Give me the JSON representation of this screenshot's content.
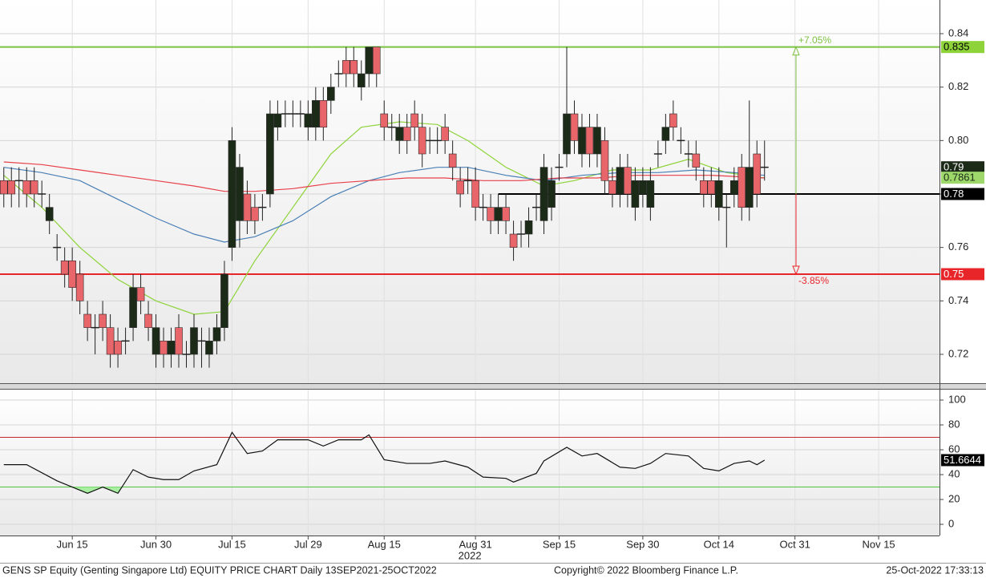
{
  "chart_data": [
    {
      "type": "candlestick",
      "x": [
        0,
        1,
        2,
        3,
        4,
        5,
        6,
        7,
        8,
        9,
        10,
        11,
        12,
        13,
        14,
        15,
        16,
        17,
        18,
        19,
        20,
        21,
        22,
        23,
        24,
        25,
        26,
        27,
        28,
        29,
        30,
        31,
        32,
        33,
        34,
        35,
        36,
        37,
        38,
        39,
        40,
        41,
        42,
        43,
        44,
        45,
        46,
        47,
        48,
        49,
        50,
        51,
        52,
        53,
        54,
        55,
        56,
        57,
        58,
        59,
        60,
        61,
        62,
        63,
        64,
        65,
        66,
        67,
        68,
        69,
        70,
        71,
        72,
        73,
        74,
        75,
        76,
        77,
        78,
        79,
        80,
        81,
        82,
        83,
        84,
        85,
        86,
        87,
        88,
        89,
        90,
        91,
        92,
        93,
        94,
        95,
        96,
        97,
        98,
        99,
        100
      ],
      "open": [
        0.785,
        0.785,
        0.785,
        0.785,
        0.785,
        0.78,
        0.77,
        0.76,
        0.755,
        0.755,
        0.75,
        0.735,
        0.73,
        0.735,
        0.73,
        0.725,
        0.725,
        0.73,
        0.745,
        0.735,
        0.72,
        0.725,
        0.72,
        0.73,
        0.72,
        0.72,
        0.725,
        0.72,
        0.725,
        0.73,
        0.76,
        0.77,
        0.78,
        0.775,
        0.775,
        0.78,
        0.805,
        0.81,
        0.81,
        0.81,
        0.805,
        0.805,
        0.815,
        0.815,
        0.825,
        0.83,
        0.83,
        0.82,
        0.825,
        0.835,
        0.81,
        0.805,
        0.8,
        0.805,
        0.81,
        0.805,
        0.8,
        0.8,
        0.805,
        0.795,
        0.785,
        0.785,
        0.785,
        0.775,
        0.775,
        0.77,
        0.775,
        0.765,
        0.765,
        0.765,
        0.775,
        0.77,
        0.775,
        0.79,
        0.795,
        0.81,
        0.795,
        0.805,
        0.795,
        0.8,
        0.785,
        0.78,
        0.79,
        0.775,
        0.78,
        0.775,
        0.795,
        0.8,
        0.81,
        0.8,
        0.795,
        0.795,
        0.785,
        0.785,
        0.775,
        0.775,
        0.78,
        0.79,
        0.775,
        0.795,
        0.79
      ],
      "high": [
        0.79,
        0.79,
        0.79,
        0.79,
        0.79,
        0.785,
        0.78,
        0.765,
        0.76,
        0.76,
        0.755,
        0.74,
        0.735,
        0.74,
        0.735,
        0.73,
        0.73,
        0.75,
        0.75,
        0.74,
        0.735,
        0.73,
        0.73,
        0.735,
        0.725,
        0.735,
        0.73,
        0.73,
        0.735,
        0.755,
        0.805,
        0.795,
        0.785,
        0.78,
        0.78,
        0.815,
        0.815,
        0.815,
        0.815,
        0.815,
        0.815,
        0.82,
        0.82,
        0.825,
        0.83,
        0.835,
        0.835,
        0.83,
        0.835,
        0.835,
        0.815,
        0.81,
        0.81,
        0.81,
        0.815,
        0.81,
        0.805,
        0.805,
        0.81,
        0.8,
        0.79,
        0.79,
        0.79,
        0.78,
        0.78,
        0.78,
        0.78,
        0.77,
        0.77,
        0.775,
        0.78,
        0.795,
        0.79,
        0.795,
        0.835,
        0.815,
        0.81,
        0.81,
        0.81,
        0.805,
        0.79,
        0.795,
        0.795,
        0.79,
        0.79,
        0.79,
        0.8,
        0.81,
        0.815,
        0.805,
        0.8,
        0.8,
        0.79,
        0.79,
        0.79,
        0.78,
        0.79,
        0.795,
        0.815,
        0.8,
        0.8
      ],
      "low": [
        0.775,
        0.775,
        0.775,
        0.775,
        0.775,
        0.775,
        0.765,
        0.755,
        0.745,
        0.74,
        0.735,
        0.725,
        0.72,
        0.725,
        0.715,
        0.715,
        0.72,
        0.725,
        0.735,
        0.725,
        0.715,
        0.715,
        0.715,
        0.715,
        0.715,
        0.715,
        0.715,
        0.715,
        0.72,
        0.725,
        0.755,
        0.76,
        0.765,
        0.765,
        0.77,
        0.775,
        0.8,
        0.805,
        0.805,
        0.805,
        0.8,
        0.8,
        0.8,
        0.81,
        0.82,
        0.82,
        0.82,
        0.815,
        0.82,
        0.82,
        0.8,
        0.8,
        0.795,
        0.795,
        0.8,
        0.79,
        0.795,
        0.795,
        0.795,
        0.785,
        0.775,
        0.78,
        0.77,
        0.77,
        0.765,
        0.765,
        0.765,
        0.755,
        0.76,
        0.76,
        0.77,
        0.765,
        0.77,
        0.785,
        0.79,
        0.795,
        0.79,
        0.79,
        0.79,
        0.78,
        0.775,
        0.775,
        0.775,
        0.77,
        0.775,
        0.77,
        0.79,
        0.795,
        0.8,
        0.795,
        0.79,
        0.785,
        0.775,
        0.775,
        0.77,
        0.76,
        0.775,
        0.77,
        0.77,
        0.775,
        0.785
      ],
      "close": [
        0.78,
        0.78,
        0.785,
        0.78,
        0.78,
        0.78,
        0.775,
        0.76,
        0.75,
        0.745,
        0.74,
        0.73,
        0.73,
        0.73,
        0.72,
        0.72,
        0.725,
        0.745,
        0.74,
        0.73,
        0.73,
        0.72,
        0.725,
        0.72,
        0.72,
        0.73,
        0.725,
        0.725,
        0.73,
        0.75,
        0.8,
        0.79,
        0.77,
        0.77,
        0.775,
        0.81,
        0.81,
        0.81,
        0.81,
        0.81,
        0.81,
        0.815,
        0.805,
        0.82,
        0.825,
        0.825,
        0.825,
        0.825,
        0.835,
        0.825,
        0.805,
        0.805,
        0.805,
        0.8,
        0.805,
        0.795,
        0.8,
        0.8,
        0.8,
        0.79,
        0.78,
        0.785,
        0.775,
        0.775,
        0.77,
        0.775,
        0.77,
        0.76,
        0.765,
        0.77,
        0.775,
        0.79,
        0.785,
        0.79,
        0.81,
        0.8,
        0.805,
        0.795,
        0.805,
        0.785,
        0.78,
        0.79,
        0.78,
        0.785,
        0.785,
        0.785,
        0.795,
        0.805,
        0.805,
        0.8,
        0.795,
        0.79,
        0.78,
        0.78,
        0.785,
        0.775,
        0.785,
        0.775,
        0.79,
        0.78,
        0.79
      ],
      "up_color": "#1c2b18",
      "down_color": "#e8666a",
      "series": [
        {
          "color": "#8ed33a",
          "x": [
            0,
            5,
            10,
            15,
            20,
            25,
            29,
            33,
            38,
            43,
            47,
            52,
            57,
            61,
            66,
            71,
            75,
            80,
            85,
            90,
            95,
            100
          ],
          "values": [
            0.787,
            0.775,
            0.76,
            0.748,
            0.74,
            0.735,
            0.736,
            0.755,
            0.775,
            0.795,
            0.805,
            0.807,
            0.806,
            0.8,
            0.79,
            0.783,
            0.785,
            0.789,
            0.789,
            0.793,
            0.788,
            0.786
          ]
        },
        {
          "color": "#4a7fb5",
          "x": [
            0,
            5,
            10,
            15,
            20,
            25,
            29,
            33,
            38,
            43,
            48,
            52,
            57,
            61,
            66,
            71,
            76,
            81,
            86,
            91,
            96,
            100
          ],
          "values": [
            0.79,
            0.788,
            0.785,
            0.778,
            0.771,
            0.765,
            0.762,
            0.764,
            0.77,
            0.779,
            0.785,
            0.788,
            0.79,
            0.79,
            0.787,
            0.785,
            0.787,
            0.788,
            0.788,
            0.789,
            0.788,
            0.787
          ]
        },
        {
          "color": "#e8404a",
          "x": [
            0,
            5,
            10,
            15,
            20,
            25,
            29,
            33,
            38,
            43,
            48,
            53,
            58,
            63,
            68,
            73,
            78,
            83,
            88,
            93,
            100
          ],
          "values": [
            0.792,
            0.791,
            0.789,
            0.787,
            0.785,
            0.783,
            0.781,
            0.781,
            0.782,
            0.784,
            0.785,
            0.786,
            0.786,
            0.785,
            0.785,
            0.786,
            0.786,
            0.787,
            0.787,
            0.787,
            0.786
          ]
        }
      ],
      "levels": [
        {
          "value": 0.835,
          "color": "#7dc242"
        },
        {
          "value": 0.78,
          "color": "#000000",
          "x_start": 65
        },
        {
          "value": 0.75,
          "color": "#e8262a"
        }
      ],
      "annotations": [
        {
          "text": "+7.05%",
          "color": "#7dc242"
        },
        {
          "text": "-3.85%",
          "color": "#e8262a"
        }
      ],
      "tags": [
        {
          "value": 0.835,
          "color": "#8ed33a",
          "text_color": "#000000"
        },
        {
          "value": 0.79,
          "color": "#1c2b18",
          "text_color": "#ffffff"
        },
        {
          "value": 0.7861,
          "color": "#9fd86a",
          "text_color": "#1c2b18"
        },
        {
          "value": 0.78,
          "color": "#000000",
          "text_color": "#ffffff"
        },
        {
          "value": 0.75,
          "color": "#e8262a",
          "text_color": "#ffffff"
        }
      ],
      "xlim": [
        -0.5,
        123
      ],
      "ylim": [
        0.7092,
        0.8526
      ],
      "yticks": [
        0.72,
        0.74,
        0.76,
        0.78,
        {
          "value": 0.8,
          "label": "0.80"
        },
        0.82,
        0.84
      ],
      "xticks": [
        {
          "value": 9,
          "label": "Jun 15"
        },
        {
          "value": 20,
          "label": "Jun 30"
        },
        {
          "value": 30,
          "label": "Jul 15"
        },
        {
          "value": 40,
          "label": "Jul 29"
        },
        {
          "value": 50,
          "label": "Aug 15"
        },
        {
          "value": 62,
          "label": "Aug 31"
        },
        {
          "value": 73,
          "label": "Sep 15"
        },
        {
          "value": 84,
          "label": "Sep 30"
        },
        {
          "value": 94,
          "label": "Oct 14"
        },
        {
          "value": 104,
          "label": "Oct 31"
        },
        {
          "value": 115,
          "label": "Nov 15"
        }
      ],
      "year_label": "2022",
      "grid": true
    },
    {
      "type": "line",
      "x": [
        0,
        3,
        7,
        9,
        11,
        13,
        15,
        17,
        19,
        21,
        23,
        25,
        28,
        30,
        32,
        34,
        36,
        40,
        42,
        44,
        47,
        48,
        50,
        53,
        56,
        58,
        61,
        63,
        66,
        67,
        70,
        71,
        74,
        76,
        78,
        81,
        83,
        85,
        87,
        90,
        92,
        94,
        96,
        98,
        99,
        100
      ],
      "values": [
        48,
        48,
        35,
        30,
        25,
        30,
        25,
        44,
        38,
        36,
        36,
        43,
        48,
        74,
        57,
        59,
        68,
        68,
        63,
        68,
        68,
        72,
        52,
        49,
        49,
        51,
        46,
        38,
        37,
        34,
        41,
        51,
        62,
        55,
        57,
        46,
        45,
        49,
        57,
        55,
        45,
        43,
        49,
        51,
        48,
        51.6644
      ],
      "color": "#111111",
      "fill_below": {
        "level": 30,
        "color": "#a8eea0"
      },
      "levels": [
        {
          "value": 70,
          "color": "#c0282d"
        },
        {
          "value": 30,
          "color": "#4cc43c"
        }
      ],
      "tags": [
        {
          "value": 51.6644,
          "color": "#000000",
          "text_color": "#ffffff"
        }
      ],
      "xlim": [
        -0.5,
        123
      ],
      "ylim": [
        -9,
        108.4
      ],
      "yticks": [
        0,
        20,
        40,
        60,
        80,
        100
      ],
      "grid": true
    }
  ],
  "footer": {
    "left": "GENS SP Equity (Genting Singapore Ltd) EQUITY PRICE CHART  Daily 13SEP2021-25OCT2022",
    "center": "Copyright© 2022 Bloomberg Finance L.P.",
    "right": "25-Oct-2022 17:33:13"
  }
}
